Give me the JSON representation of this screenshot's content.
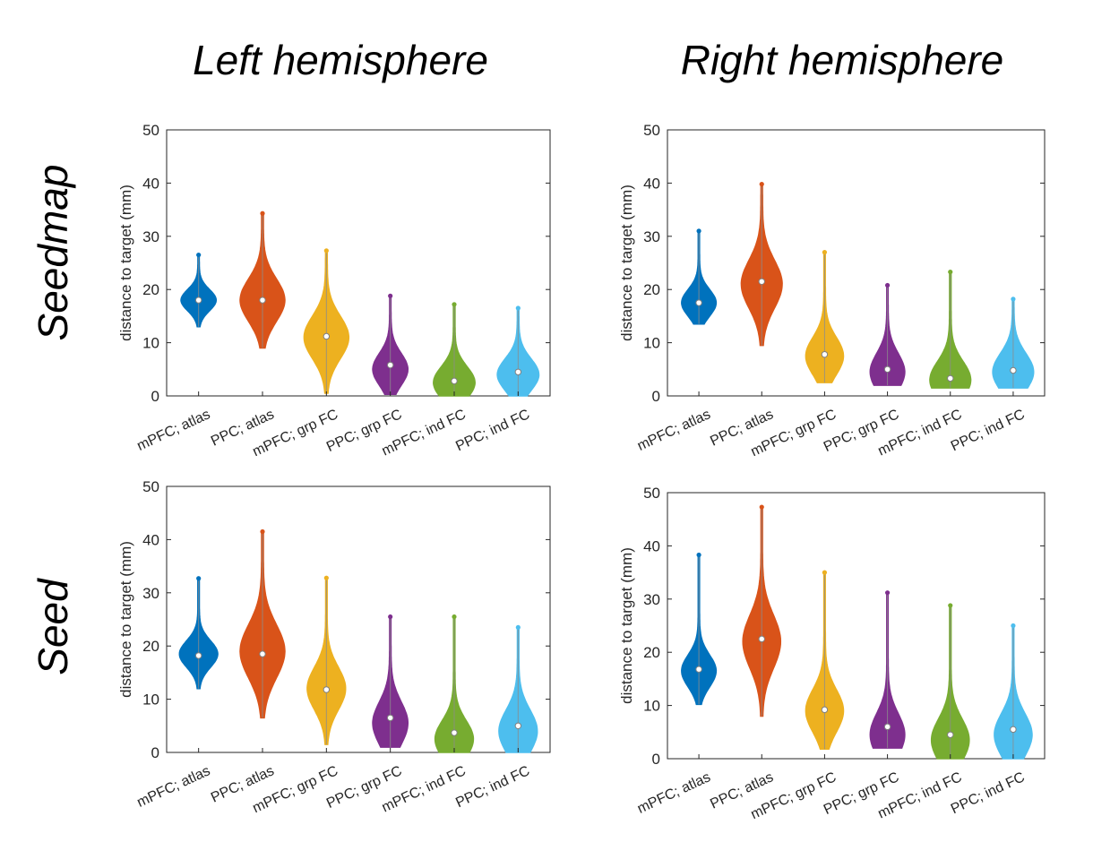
{
  "figure": {
    "col_titles": [
      "Left hemisphere",
      "Right hemisphere"
    ],
    "row_titles": [
      "Seedmap",
      "Seed"
    ],
    "colors": [
      "#0072BD",
      "#D95319",
      "#EDB120",
      "#7E2F8E",
      "#77AC30",
      "#4DBEEE"
    ]
  },
  "chart_data": [
    {
      "type": "violin",
      "panel": "Seedmap / Left hemisphere",
      "categories": [
        "mPFC; atlas",
        "PPC; atlas",
        "mPFC; grp FC",
        "PPC; grp FC",
        "mPFC; ind FC",
        "PPC; ind FC"
      ],
      "ylabel": "distance to target (mm)",
      "ylim": [
        0,
        50
      ],
      "yticks": [
        0,
        10,
        20,
        30,
        40,
        50
      ],
      "medians": [
        18,
        18,
        11.2,
        5.8,
        2.8,
        4.5
      ],
      "min": [
        13,
        9,
        0.5,
        0.3,
        0,
        0
      ],
      "max": [
        26.5,
        34.3,
        27.3,
        18.8,
        17.2,
        16.5
      ],
      "mode": [
        18,
        18,
        11,
        5,
        2.5,
        4
      ],
      "peak_width": [
        0.55,
        0.7,
        0.7,
        0.55,
        0.65,
        0.65
      ],
      "spread": [
        2,
        4,
        4,
        3,
        3,
        3
      ]
    },
    {
      "type": "violin",
      "panel": "Seedmap / Right hemisphere",
      "categories": [
        "mPFC; atlas",
        "PPC; atlas",
        "mPFC; grp FC",
        "PPC; grp FC",
        "mPFC; ind FC",
        "PPC; ind FC"
      ],
      "ylabel": "distance to target (mm)",
      "ylim": [
        0,
        50
      ],
      "yticks": [
        0,
        10,
        20,
        30,
        40,
        50
      ],
      "medians": [
        17.5,
        21.5,
        7.8,
        5,
        3.3,
        4.8
      ],
      "min": [
        13.5,
        9.5,
        2.5,
        2,
        1.5,
        1.5
      ],
      "max": [
        31,
        39.8,
        27,
        20.8,
        23.3,
        18.2
      ],
      "mode": [
        17.5,
        21,
        7.5,
        4.5,
        3,
        4.5
      ],
      "peak_width": [
        0.55,
        0.65,
        0.6,
        0.55,
        0.65,
        0.65
      ],
      "spread": [
        2.5,
        4.5,
        3.5,
        3.5,
        3.5,
        3.5
      ]
    },
    {
      "type": "violin",
      "panel": "Seed / Left hemisphere",
      "categories": [
        "mPFC; atlas",
        "PPC; atlas",
        "mPFC; grp FC",
        "PPC; grp FC",
        "mPFC; ind FC",
        "PPC; ind FC"
      ],
      "ylabel": "distance to target (mm)",
      "ylim": [
        0,
        50
      ],
      "yticks": [
        0,
        10,
        20,
        30,
        40,
        50
      ],
      "medians": [
        18.2,
        18.5,
        11.8,
        6.5,
        3.7,
        5
      ],
      "min": [
        12,
        6.5,
        1.5,
        1,
        0,
        0
      ],
      "max": [
        32.7,
        41.5,
        32.8,
        25.5,
        25.5,
        23.5
      ],
      "mode": [
        18.5,
        19,
        12,
        5.5,
        2.5,
        4
      ],
      "peak_width": [
        0.6,
        0.7,
        0.6,
        0.55,
        0.6,
        0.6
      ],
      "spread": [
        2.5,
        5,
        4,
        4,
        3.5,
        4
      ]
    },
    {
      "type": "violin",
      "panel": "Seed / Right hemisphere",
      "categories": [
        "mPFC; atlas",
        "PPC; atlas",
        "mPFC; grp FC",
        "PPC; grp FC",
        "mPFC; ind FC",
        "PPC; ind FC"
      ],
      "ylabel": "distance to target (mm)",
      "ylim": [
        0,
        50
      ],
      "yticks": [
        0,
        10,
        20,
        30,
        40,
        50
      ],
      "medians": [
        16.8,
        22.5,
        9.2,
        6,
        4.5,
        5.5
      ],
      "min": [
        10.2,
        8,
        1.8,
        2,
        0,
        0
      ],
      "max": [
        38.3,
        47.3,
        35,
        31.2,
        28.8,
        25
      ],
      "mode": [
        16.5,
        22,
        9,
        4.5,
        3.5,
        4.5
      ],
      "peak_width": [
        0.55,
        0.6,
        0.6,
        0.55,
        0.6,
        0.6
      ],
      "spread": [
        3,
        5,
        4,
        4,
        4,
        4
      ]
    }
  ]
}
